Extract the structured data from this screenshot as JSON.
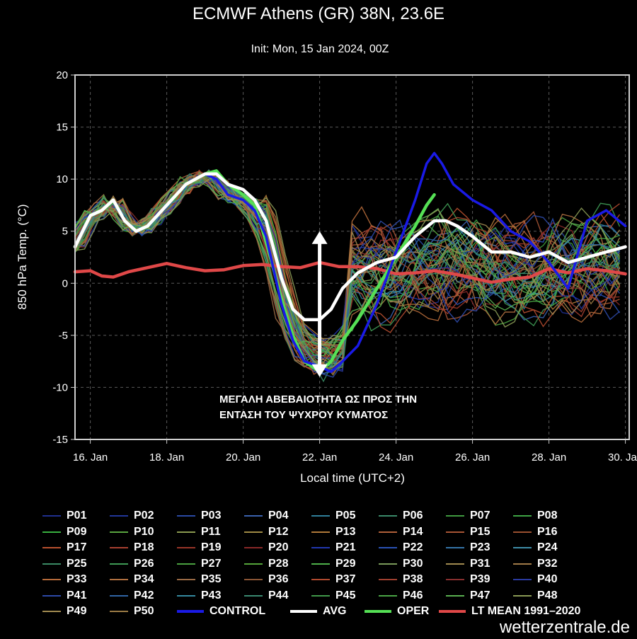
{
  "chart_data": {
    "type": "line",
    "title": "ECMWF Athens (GR) 38N, 23.6E",
    "subtitle": "Init: Mon, 15 Jan 2024, 00Z",
    "xlabel": "Local time (UTC+2)",
    "ylabel": "850 hPa Temp. (°C)",
    "ylim": [
      -15,
      20
    ],
    "yticks": [
      -15,
      -10,
      -5,
      0,
      5,
      10,
      15,
      20
    ],
    "xlim": [
      15.6,
      30.1
    ],
    "xticks": [
      16,
      18,
      20,
      22,
      24,
      26,
      28,
      30
    ],
    "xtick_labels": [
      "16. Jan",
      "18. Jan",
      "20. Jan",
      "22. Jan",
      "24. Jan",
      "26. Jan",
      "28. Jan",
      "30. Jan"
    ],
    "grid": true,
    "legend_position": "bottom",
    "annotation": {
      "lines": [
        "ΜΕΓΑΛΗ ΑΒΕΒΑΙΟΤΗΤΑ ΩΣ ΠΡΟΣ ΤΗΝ",
        "ΕΝΤΑΣΗ ΤΟΥ ΨΥΧΡΟΥ ΚΥΜΑΤΟΣ"
      ],
      "arrow_x": 22.0,
      "arrow_from": 5.0,
      "arrow_to": -9.0
    },
    "main_series": [
      {
        "name": "CONTROL",
        "color": "#1a1ae6",
        "x": [
          15.6,
          16.0,
          16.3,
          16.6,
          16.9,
          17.2,
          17.5,
          18.0,
          18.5,
          19.0,
          19.3,
          19.6,
          20.0,
          20.3,
          20.6,
          21.0,
          21.3,
          21.6,
          22.0,
          22.3,
          22.6,
          23.0,
          23.5,
          24.0,
          24.5,
          24.8,
          25.0,
          25.2,
          25.5,
          26.0,
          26.5,
          27.0,
          27.5,
          28.0,
          28.5,
          29.0,
          29.5,
          30.0
        ],
        "y": [
          3.5,
          6.5,
          7.0,
          8.0,
          6.0,
          5.0,
          5.5,
          7.5,
          9.5,
          10.5,
          10.0,
          8.5,
          8.0,
          7.0,
          4.5,
          -2.0,
          -5.5,
          -7.5,
          -8.0,
          -8.5,
          -7.5,
          -6.0,
          -2.0,
          3.0,
          8.0,
          11.5,
          12.5,
          11.5,
          9.5,
          8.0,
          7.0,
          5.0,
          4.0,
          2.0,
          -0.5,
          6.0,
          7.0,
          5.5
        ]
      },
      {
        "name": "AVG",
        "color": "#ffffff",
        "x": [
          15.6,
          16.0,
          16.3,
          16.6,
          16.9,
          17.2,
          17.5,
          18.0,
          18.5,
          19.0,
          19.3,
          19.6,
          20.0,
          20.3,
          20.6,
          21.0,
          21.3,
          21.6,
          22.0,
          22.3,
          22.6,
          23.0,
          23.5,
          24.0,
          24.5,
          25.0,
          25.3,
          25.6,
          26.0,
          26.5,
          27.0,
          27.5,
          28.0,
          28.5,
          29.0,
          29.5,
          30.0
        ],
        "y": [
          3.5,
          6.5,
          7.0,
          8.0,
          6.0,
          5.0,
          5.5,
          7.5,
          9.5,
          10.5,
          10.5,
          9.5,
          9.0,
          8.0,
          6.0,
          0.5,
          -2.5,
          -3.5,
          -3.5,
          -2.5,
          -0.5,
          1.0,
          2.0,
          2.5,
          4.5,
          6.0,
          6.0,
          5.5,
          4.5,
          3.0,
          3.0,
          2.5,
          3.0,
          2.0,
          2.5,
          3.0,
          3.5
        ]
      },
      {
        "name": "OPER",
        "color": "#55e055",
        "x": [
          15.6,
          16.0,
          16.3,
          16.6,
          16.9,
          17.2,
          17.5,
          18.0,
          18.5,
          19.0,
          19.3,
          19.6,
          20.0,
          20.3,
          20.6,
          21.0,
          21.3,
          21.6,
          22.0,
          22.3,
          22.6,
          23.0,
          23.5,
          24.0,
          24.5,
          24.8,
          25.0
        ],
        "y": [
          3.5,
          6.5,
          7.0,
          8.0,
          6.0,
          5.0,
          5.5,
          7.5,
          9.5,
          10.5,
          10.8,
          9.5,
          8.5,
          7.5,
          4.0,
          -1.5,
          -5.0,
          -7.5,
          -8.5,
          -7.5,
          -5.5,
          -3.5,
          -0.5,
          2.5,
          5.5,
          7.5,
          8.5
        ]
      },
      {
        "name": "LT MEAN 1991-2020",
        "color": "#e04848",
        "x": [
          15.6,
          16.0,
          16.3,
          16.6,
          17.0,
          17.5,
          18.0,
          18.5,
          19.0,
          19.5,
          20.0,
          20.5,
          21.0,
          21.5,
          22.0,
          22.5,
          23.0,
          23.5,
          24.0,
          24.5,
          25.0,
          25.5,
          26.0,
          26.5,
          27.0,
          27.5,
          28.0,
          28.5,
          29.0,
          29.5,
          30.0
        ],
        "y": [
          1.1,
          1.2,
          0.7,
          0.6,
          1.1,
          1.5,
          1.9,
          1.5,
          1.2,
          1.3,
          1.7,
          1.8,
          1.6,
          1.5,
          2.0,
          1.6,
          1.6,
          1.4,
          0.9,
          1.0,
          1.2,
          0.9,
          0.5,
          0.1,
          0.4,
          0.6,
          1.4,
          1.0,
          1.4,
          1.2,
          0.9
        ]
      }
    ],
    "legend": [
      {
        "label": "P01",
        "color": "#1f2f8f"
      },
      {
        "label": "P02",
        "color": "#22379a"
      },
      {
        "label": "P03",
        "color": "#2a4aa5"
      },
      {
        "label": "P04",
        "color": "#3a62ae"
      },
      {
        "label": "P05",
        "color": "#2f7f9a"
      },
      {
        "label": "P06",
        "color": "#3a8a6a"
      },
      {
        "label": "P07",
        "color": "#3f9a3f"
      },
      {
        "label": "P08",
        "color": "#3ea545"
      },
      {
        "label": "P09",
        "color": "#39b040"
      },
      {
        "label": "P10",
        "color": "#5aa540"
      },
      {
        "label": "P11",
        "color": "#8a9a50"
      },
      {
        "label": "P12",
        "color": "#a08a45"
      },
      {
        "label": "P13",
        "color": "#b07a3a"
      },
      {
        "label": "P14",
        "color": "#b0603a"
      },
      {
        "label": "P15",
        "color": "#a85535"
      },
      {
        "label": "P16",
        "color": "#9a5030"
      },
      {
        "label": "P17",
        "color": "#b8502f"
      },
      {
        "label": "P18",
        "color": "#a84030"
      },
      {
        "label": "P19",
        "color": "#983528"
      },
      {
        "label": "P20",
        "color": "#882828"
      },
      {
        "label": "P21",
        "color": "#2238b0"
      },
      {
        "label": "P22",
        "color": "#2a52b5"
      },
      {
        "label": "P23",
        "color": "#3574a8"
      },
      {
        "label": "P24",
        "color": "#3f8da8"
      },
      {
        "label": "P25",
        "color": "#3a8a65"
      },
      {
        "label": "P26",
        "color": "#3f9a55"
      },
      {
        "label": "P27",
        "color": "#4aa040"
      },
      {
        "label": "P28",
        "color": "#55a53a"
      },
      {
        "label": "P29",
        "color": "#4eb04a"
      },
      {
        "label": "P30",
        "color": "#7a9a5a"
      },
      {
        "label": "P31",
        "color": "#a08a50"
      },
      {
        "label": "P32",
        "color": "#a07a48"
      },
      {
        "label": "P33",
        "color": "#b56a3a"
      },
      {
        "label": "P34",
        "color": "#b07040"
      },
      {
        "label": "P35",
        "color": "#9a6a45"
      },
      {
        "label": "P36",
        "color": "#8a5535"
      },
      {
        "label": "P37",
        "color": "#b04a2f"
      },
      {
        "label": "P38",
        "color": "#a04030"
      },
      {
        "label": "P39",
        "color": "#882f2f"
      },
      {
        "label": "P40",
        "color": "#2a3aa0"
      },
      {
        "label": "P41",
        "color": "#2d4aa8"
      },
      {
        "label": "P42",
        "color": "#3065a5"
      },
      {
        "label": "P43",
        "color": "#358aa0"
      },
      {
        "label": "P44",
        "color": "#3a8a70"
      },
      {
        "label": "P45",
        "color": "#40984a"
      },
      {
        "label": "P46",
        "color": "#4aa545"
      },
      {
        "label": "P47",
        "color": "#5ab050"
      },
      {
        "label": "P48",
        "color": "#8a9a55"
      },
      {
        "label": "P49",
        "color": "#a08a50"
      },
      {
        "label": "P50",
        "color": "#9a7a45"
      },
      {
        "label": "CONTROL",
        "color": "#1a1ae6",
        "bold": true
      },
      {
        "label": "AVG",
        "color": "#ffffff",
        "bold": true
      },
      {
        "label": "OPER",
        "color": "#55e055",
        "bold": true
      },
      {
        "label": "LT MEAN 1991–2020",
        "color": "#e04848",
        "bold": true
      }
    ]
  },
  "watermark": "wetterzentrale.de"
}
